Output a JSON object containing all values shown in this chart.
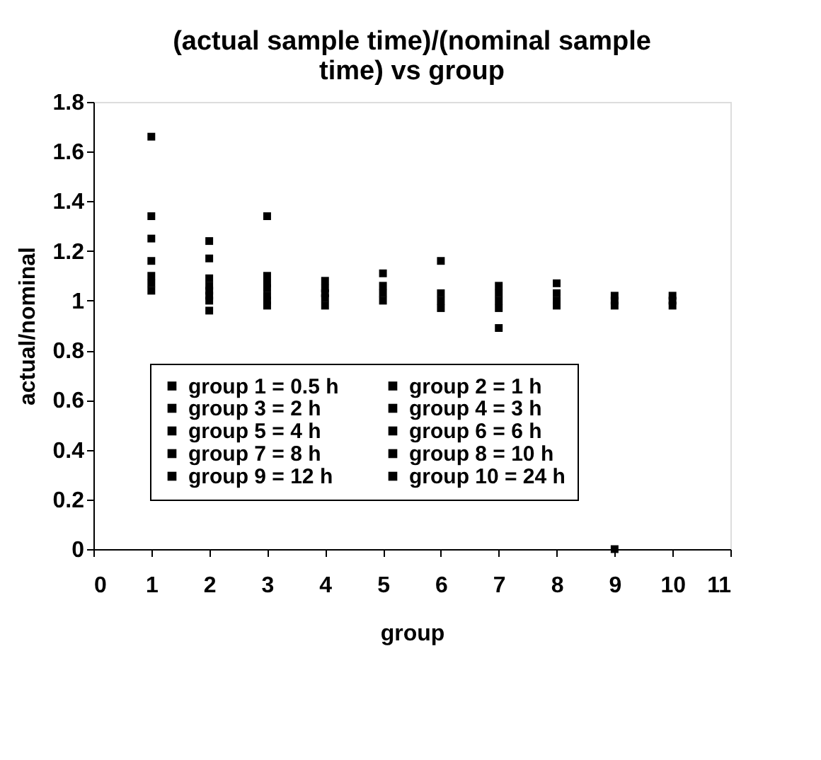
{
  "chart_data": {
    "type": "scatter",
    "title": "(actual sample time)/(nominal sample time) vs group",
    "xlabel": "group",
    "ylabel": "actual/nominal",
    "xlim": [
      0,
      11
    ],
    "xticks": [
      0,
      1,
      2,
      3,
      4,
      5,
      6,
      7,
      8,
      9,
      10,
      11
    ],
    "ylim": [
      0,
      1.8
    ],
    "yticks": [
      0,
      0.2,
      0.4,
      0.6,
      0.8,
      1,
      1.2,
      1.4,
      1.6,
      1.8
    ],
    "grid": false,
    "legend": "bottom",
    "marker": "square",
    "series": [
      {
        "name": "group 1 = 0.5 h",
        "color": "#000000",
        "x": [
          1,
          1,
          1,
          1,
          1,
          1,
          1
        ],
        "values": [
          1.66,
          1.34,
          1.25,
          1.16,
          1.1,
          1.07,
          1.04
        ]
      },
      {
        "name": "group 2 = 1 h",
        "color": "#000000",
        "x": [
          2,
          2,
          2,
          2,
          2,
          2,
          2,
          2
        ],
        "values": [
          1.24,
          1.17,
          1.09,
          1.06,
          1.04,
          1.02,
          1.0,
          0.96
        ]
      },
      {
        "name": "group 3 = 2 h",
        "color": "#000000",
        "x": [
          3,
          3,
          3,
          3,
          3,
          3,
          3
        ],
        "values": [
          1.34,
          1.1,
          1.07,
          1.05,
          1.02,
          1.0,
          0.98
        ]
      },
      {
        "name": "group 4 = 3 h",
        "color": "#000000",
        "x": [
          4,
          4,
          4,
          4,
          4
        ],
        "values": [
          1.08,
          1.05,
          1.03,
          1.01,
          0.98
        ]
      },
      {
        "name": "group 5 = 4 h",
        "color": "#000000",
        "x": [
          5,
          5,
          5,
          5
        ],
        "values": [
          1.11,
          1.06,
          1.03,
          1.0
        ]
      },
      {
        "name": "group 6 = 6 h",
        "color": "#000000",
        "x": [
          6,
          6,
          6,
          6
        ],
        "values": [
          1.16,
          1.03,
          1.0,
          0.97
        ]
      },
      {
        "name": "group 7 = 8 h",
        "color": "#000000",
        "x": [
          7,
          7,
          7,
          7,
          7
        ],
        "values": [
          1.06,
          1.03,
          1.0,
          0.97,
          0.89
        ]
      },
      {
        "name": "group 8 = 10 h",
        "color": "#000000",
        "x": [
          8,
          8,
          8,
          8
        ],
        "values": [
          1.07,
          1.03,
          1.0,
          0.98
        ]
      },
      {
        "name": "group 9 = 12 h",
        "color": "#000000",
        "x": [
          9,
          9,
          9,
          9
        ],
        "values": [
          1.02,
          1.0,
          0.98,
          0
        ]
      },
      {
        "name": "group 10 = 24 h",
        "color": "#000000",
        "x": [
          10,
          10,
          10
        ],
        "values": [
          1.02,
          1.0,
          0.98
        ]
      }
    ]
  }
}
